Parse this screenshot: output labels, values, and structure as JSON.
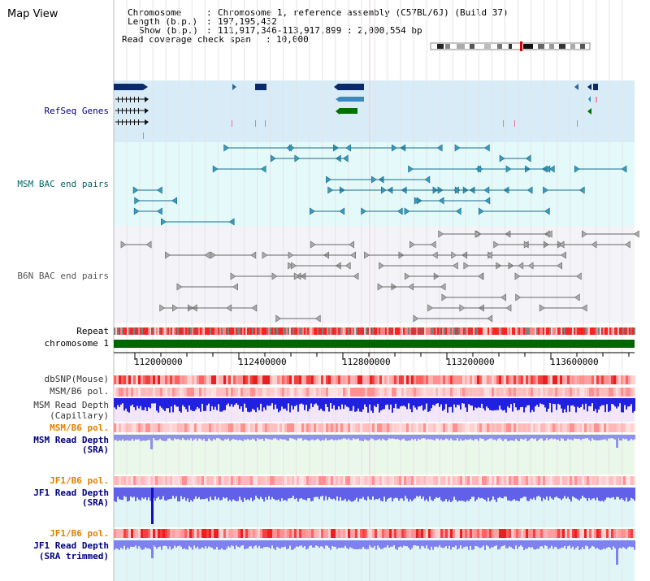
{
  "title": "Map View",
  "info": {
    "chromosome_label": "Chromosome",
    "chromosome_value": "Chromosome 1, reference assembly (C57BL/6J) (Build 37)",
    "length_label": "Length (b.p.)",
    "length_value": "197,195,432",
    "show_label": "Show (b.p.)",
    "show_value": "111,917,346-113,917,899 : 2,000,554 bp",
    "coverage_label": "Read coverage check span",
    "coverage_value": "10,000"
  },
  "tracks": {
    "refseq": "RefSeq Genes",
    "msm_bac": "MSM BAC end pairs",
    "b6n_bac": "B6N BAC end pairs",
    "repeat": "Repeat",
    "chromosome": "chromosome 1",
    "dbsnp": "dbSNP(Mouse)",
    "msm_b6_pol_1": "MSM/B6 pol.",
    "msm_read_depth_cap_1": "MSM Read Depth",
    "msm_read_depth_cap_2": "(Capillary)",
    "msm_b6_pol_2": "MSM/B6 pol.",
    "msm_read_depth_sra_1": "MSM Read Depth",
    "msm_read_depth_sra_2": "(SRA)",
    "jf1_b6_pol_1": "JF1/B6 pol.",
    "jf1_read_depth_sra_1": "JF1 Read Depth",
    "jf1_read_depth_sra_2": "(SRA)",
    "jf1_b6_pol_2": "JF1/B6 pol.",
    "jf1_read_depth_trim_1": "JF1 Read Depth",
    "jf1_read_depth_trim_2": "(SRA trimmed)"
  },
  "axis": {
    "ticks": [
      "112000000",
      "112400000",
      "112800000",
      "113200000",
      "113600000"
    ]
  },
  "colors": {
    "refseq_bg": "#d8ecf8",
    "msm_bg": "#e4fafa",
    "b6n_bg": "#f4f4f8",
    "chrom_green": "#006600",
    "depth_blue": "#2020e0",
    "depth_light": "#8888f0",
    "pol_red": "#e83030"
  }
}
